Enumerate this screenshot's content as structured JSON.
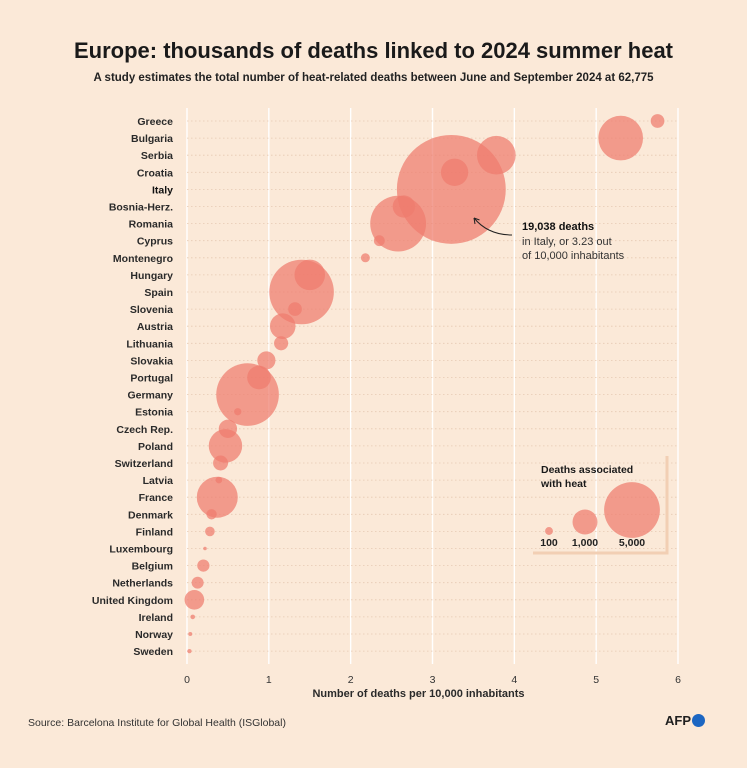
{
  "title": "Europe: thousands of deaths linked to 2024 summer heat",
  "subtitle": "A study estimates the total number of heat-related deaths between June and September 2024 at 62,775",
  "source": "Source: Barcelona Institute for Global Health (ISGlobal)",
  "logo_text": "AFP",
  "colors": {
    "bubble": "#ee7b6e",
    "bubble_opacity": 0.72,
    "grid": "#ffffff",
    "background": "#fbe9d8",
    "legend_border": "#f2cfb4",
    "logo_dot": "#1c66c2"
  },
  "chart_data": {
    "type": "scatter",
    "title": "Europe: thousands of deaths linked to 2024 summer heat",
    "xlabel": "Number of deaths per 10,000 inhabitants",
    "ylabel": "",
    "xlim": [
      0,
      6
    ],
    "xticks": [
      0,
      1,
      2,
      3,
      4,
      5,
      6
    ],
    "grid": true,
    "size_encoding": "Deaths associated with heat",
    "points": [
      {
        "country": "Greece",
        "rate": 5.75,
        "deaths": 300
      },
      {
        "country": "Bulgaria",
        "rate": 5.3,
        "deaths": 3200
      },
      {
        "country": "Serbia",
        "rate": 3.78,
        "deaths": 2400
      },
      {
        "country": "Croatia",
        "rate": 3.27,
        "deaths": 1200
      },
      {
        "country": "Italy",
        "rate": 3.23,
        "deaths": 19038,
        "highlight": true
      },
      {
        "country": "Bosnia-Herz.",
        "rate": 2.65,
        "deaths": 800
      },
      {
        "country": "Romania",
        "rate": 2.58,
        "deaths": 5000
      },
      {
        "country": "Cyprus",
        "rate": 2.35,
        "deaths": 190
      },
      {
        "country": "Montenegro",
        "rate": 2.18,
        "deaths": 130
      },
      {
        "country": "Hungary",
        "rate": 1.5,
        "deaths": 1500
      },
      {
        "country": "Spain",
        "rate": 1.4,
        "deaths": 6700
      },
      {
        "country": "Slovenia",
        "rate": 1.32,
        "deaths": 300
      },
      {
        "country": "Austria",
        "rate": 1.17,
        "deaths": 1050
      },
      {
        "country": "Lithuania",
        "rate": 1.15,
        "deaths": 320
      },
      {
        "country": "Slovakia",
        "rate": 0.97,
        "deaths": 530
      },
      {
        "country": "Portugal",
        "rate": 0.88,
        "deaths": 900
      },
      {
        "country": "Germany",
        "rate": 0.74,
        "deaths": 6300
      },
      {
        "country": "Estonia",
        "rate": 0.62,
        "deaths": 85
      },
      {
        "country": "Czech Rep.",
        "rate": 0.5,
        "deaths": 540
      },
      {
        "country": "Poland",
        "rate": 0.47,
        "deaths": 1800
      },
      {
        "country": "Switzerland",
        "rate": 0.41,
        "deaths": 360
      },
      {
        "country": "Latvia",
        "rate": 0.39,
        "deaths": 70
      },
      {
        "country": "France",
        "rate": 0.37,
        "deaths": 2700
      },
      {
        "country": "Denmark",
        "rate": 0.3,
        "deaths": 170
      },
      {
        "country": "Finland",
        "rate": 0.28,
        "deaths": 150
      },
      {
        "country": "Luxembourg",
        "rate": 0.22,
        "deaths": 20
      },
      {
        "country": "Belgium",
        "rate": 0.2,
        "deaths": 240
      },
      {
        "country": "Netherlands",
        "rate": 0.13,
        "deaths": 230
      },
      {
        "country": "United Kingdom",
        "rate": 0.09,
        "deaths": 620
      },
      {
        "country": "Ireland",
        "rate": 0.07,
        "deaths": 35
      },
      {
        "country": "Norway",
        "rate": 0.04,
        "deaths": 25
      },
      {
        "country": "Sweden",
        "rate": 0.03,
        "deaths": 30
      }
    ],
    "annotation": {
      "country": "Italy",
      "bold": "19,038 deaths",
      "lines": [
        "in Italy, or 3.23 out",
        "of 10,000 inhabitants"
      ]
    },
    "legend": {
      "title_lines": [
        "Deaths associated",
        "with heat"
      ],
      "placement": "bottom-right",
      "items": [
        {
          "value": 100,
          "label": "100"
        },
        {
          "value": 1000,
          "label": "1,000"
        },
        {
          "value": 5000,
          "label": "5,000"
        }
      ]
    }
  }
}
